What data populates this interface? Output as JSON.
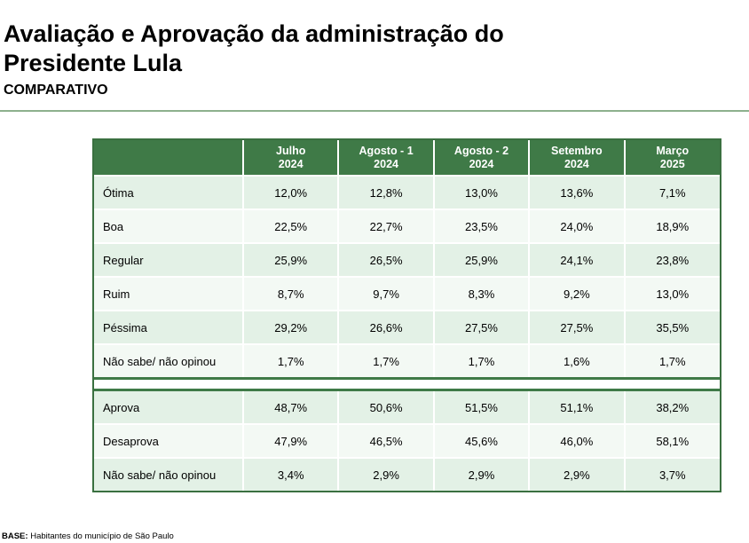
{
  "header": {
    "title": "Avaliação e Aprovação da administração do Presidente Lula",
    "subtitle": "COMPARATIVO"
  },
  "table": {
    "columns": [
      {
        "line1": "Julho",
        "line2": "2024"
      },
      {
        "line1": "Agosto - 1",
        "line2": "2024"
      },
      {
        "line1": "Agosto - 2",
        "line2": "2024"
      },
      {
        "line1": "Setembro",
        "line2": "2024"
      },
      {
        "line1": "Março",
        "line2": "2025"
      }
    ],
    "evaluation_rows": [
      {
        "label": "Ótima",
        "values": [
          "12,0%",
          "12,8%",
          "13,0%",
          "13,6%",
          "7,1%"
        ]
      },
      {
        "label": "Boa",
        "values": [
          "22,5%",
          "22,7%",
          "23,5%",
          "24,0%",
          "18,9%"
        ]
      },
      {
        "label": "Regular",
        "values": [
          "25,9%",
          "26,5%",
          "25,9%",
          "24,1%",
          "23,8%"
        ]
      },
      {
        "label": "Ruim",
        "values": [
          "8,7%",
          "9,7%",
          "8,3%",
          "9,2%",
          "13,0%"
        ]
      },
      {
        "label": "Péssima",
        "values": [
          "29,2%",
          "26,6%",
          "27,5%",
          "27,5%",
          "35,5%"
        ]
      },
      {
        "label": "Não sabe/ não opinou",
        "values": [
          "1,7%",
          "1,7%",
          "1,7%",
          "1,6%",
          "1,7%"
        ]
      }
    ],
    "approval_rows": [
      {
        "label": "Aprova",
        "values": [
          "48,7%",
          "50,6%",
          "51,5%",
          "51,1%",
          "38,2%"
        ]
      },
      {
        "label": "Desaprova",
        "values": [
          "47,9%",
          "46,5%",
          "45,6%",
          "46,0%",
          "58,1%"
        ]
      },
      {
        "label": "Não sabe/ não opinou",
        "values": [
          "3,4%",
          "2,9%",
          "2,9%",
          "2,9%",
          "3,7%"
        ]
      }
    ]
  },
  "footer": {
    "base_label": "BASE:",
    "base_text": " Habitantes do município de São Paulo"
  }
}
